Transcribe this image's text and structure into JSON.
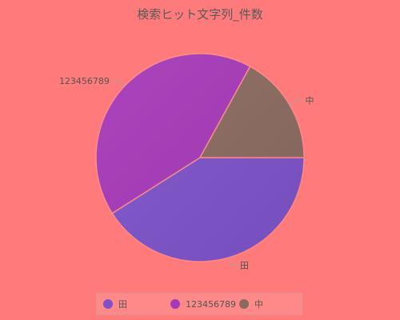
{
  "chart_data": {
    "type": "pie",
    "title": "検索ヒット文字列_件数",
    "categories": [
      "田",
      "123456789",
      "中"
    ],
    "values": [
      41,
      42,
      17
    ],
    "colors": [
      "#7d52c9",
      "#a639b8",
      "#8a6a5f"
    ],
    "legend": "bottom",
    "start_angle_deg": 0,
    "direction": "clockwise"
  }
}
